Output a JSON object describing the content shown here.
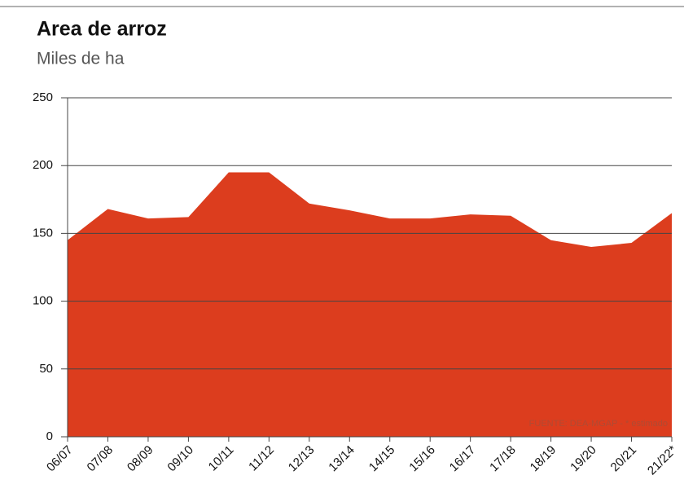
{
  "chart_data": {
    "type": "area",
    "title": "Area de arroz",
    "subtitle": "Miles de ha",
    "annotation": "FUENTE: DEA-MGAP - * estimado",
    "categories": [
      "06/07",
      "07/08",
      "08/09",
      "09/10",
      "10/11",
      "11/12",
      "12/13",
      "13/14",
      "14/15",
      "15/16",
      "16/17",
      "17/18",
      "18/19",
      "19/20",
      "20/21",
      "21/22*"
    ],
    "values": [
      145,
      168,
      161,
      162,
      195,
      195,
      172,
      167,
      161,
      161,
      164,
      163,
      145,
      140,
      143,
      165
    ],
    "color": "#dc3d1e",
    "ylim": [
      0,
      250
    ],
    "yticks": [
      0,
      50,
      100,
      150,
      200,
      250
    ],
    "grid": true
  }
}
